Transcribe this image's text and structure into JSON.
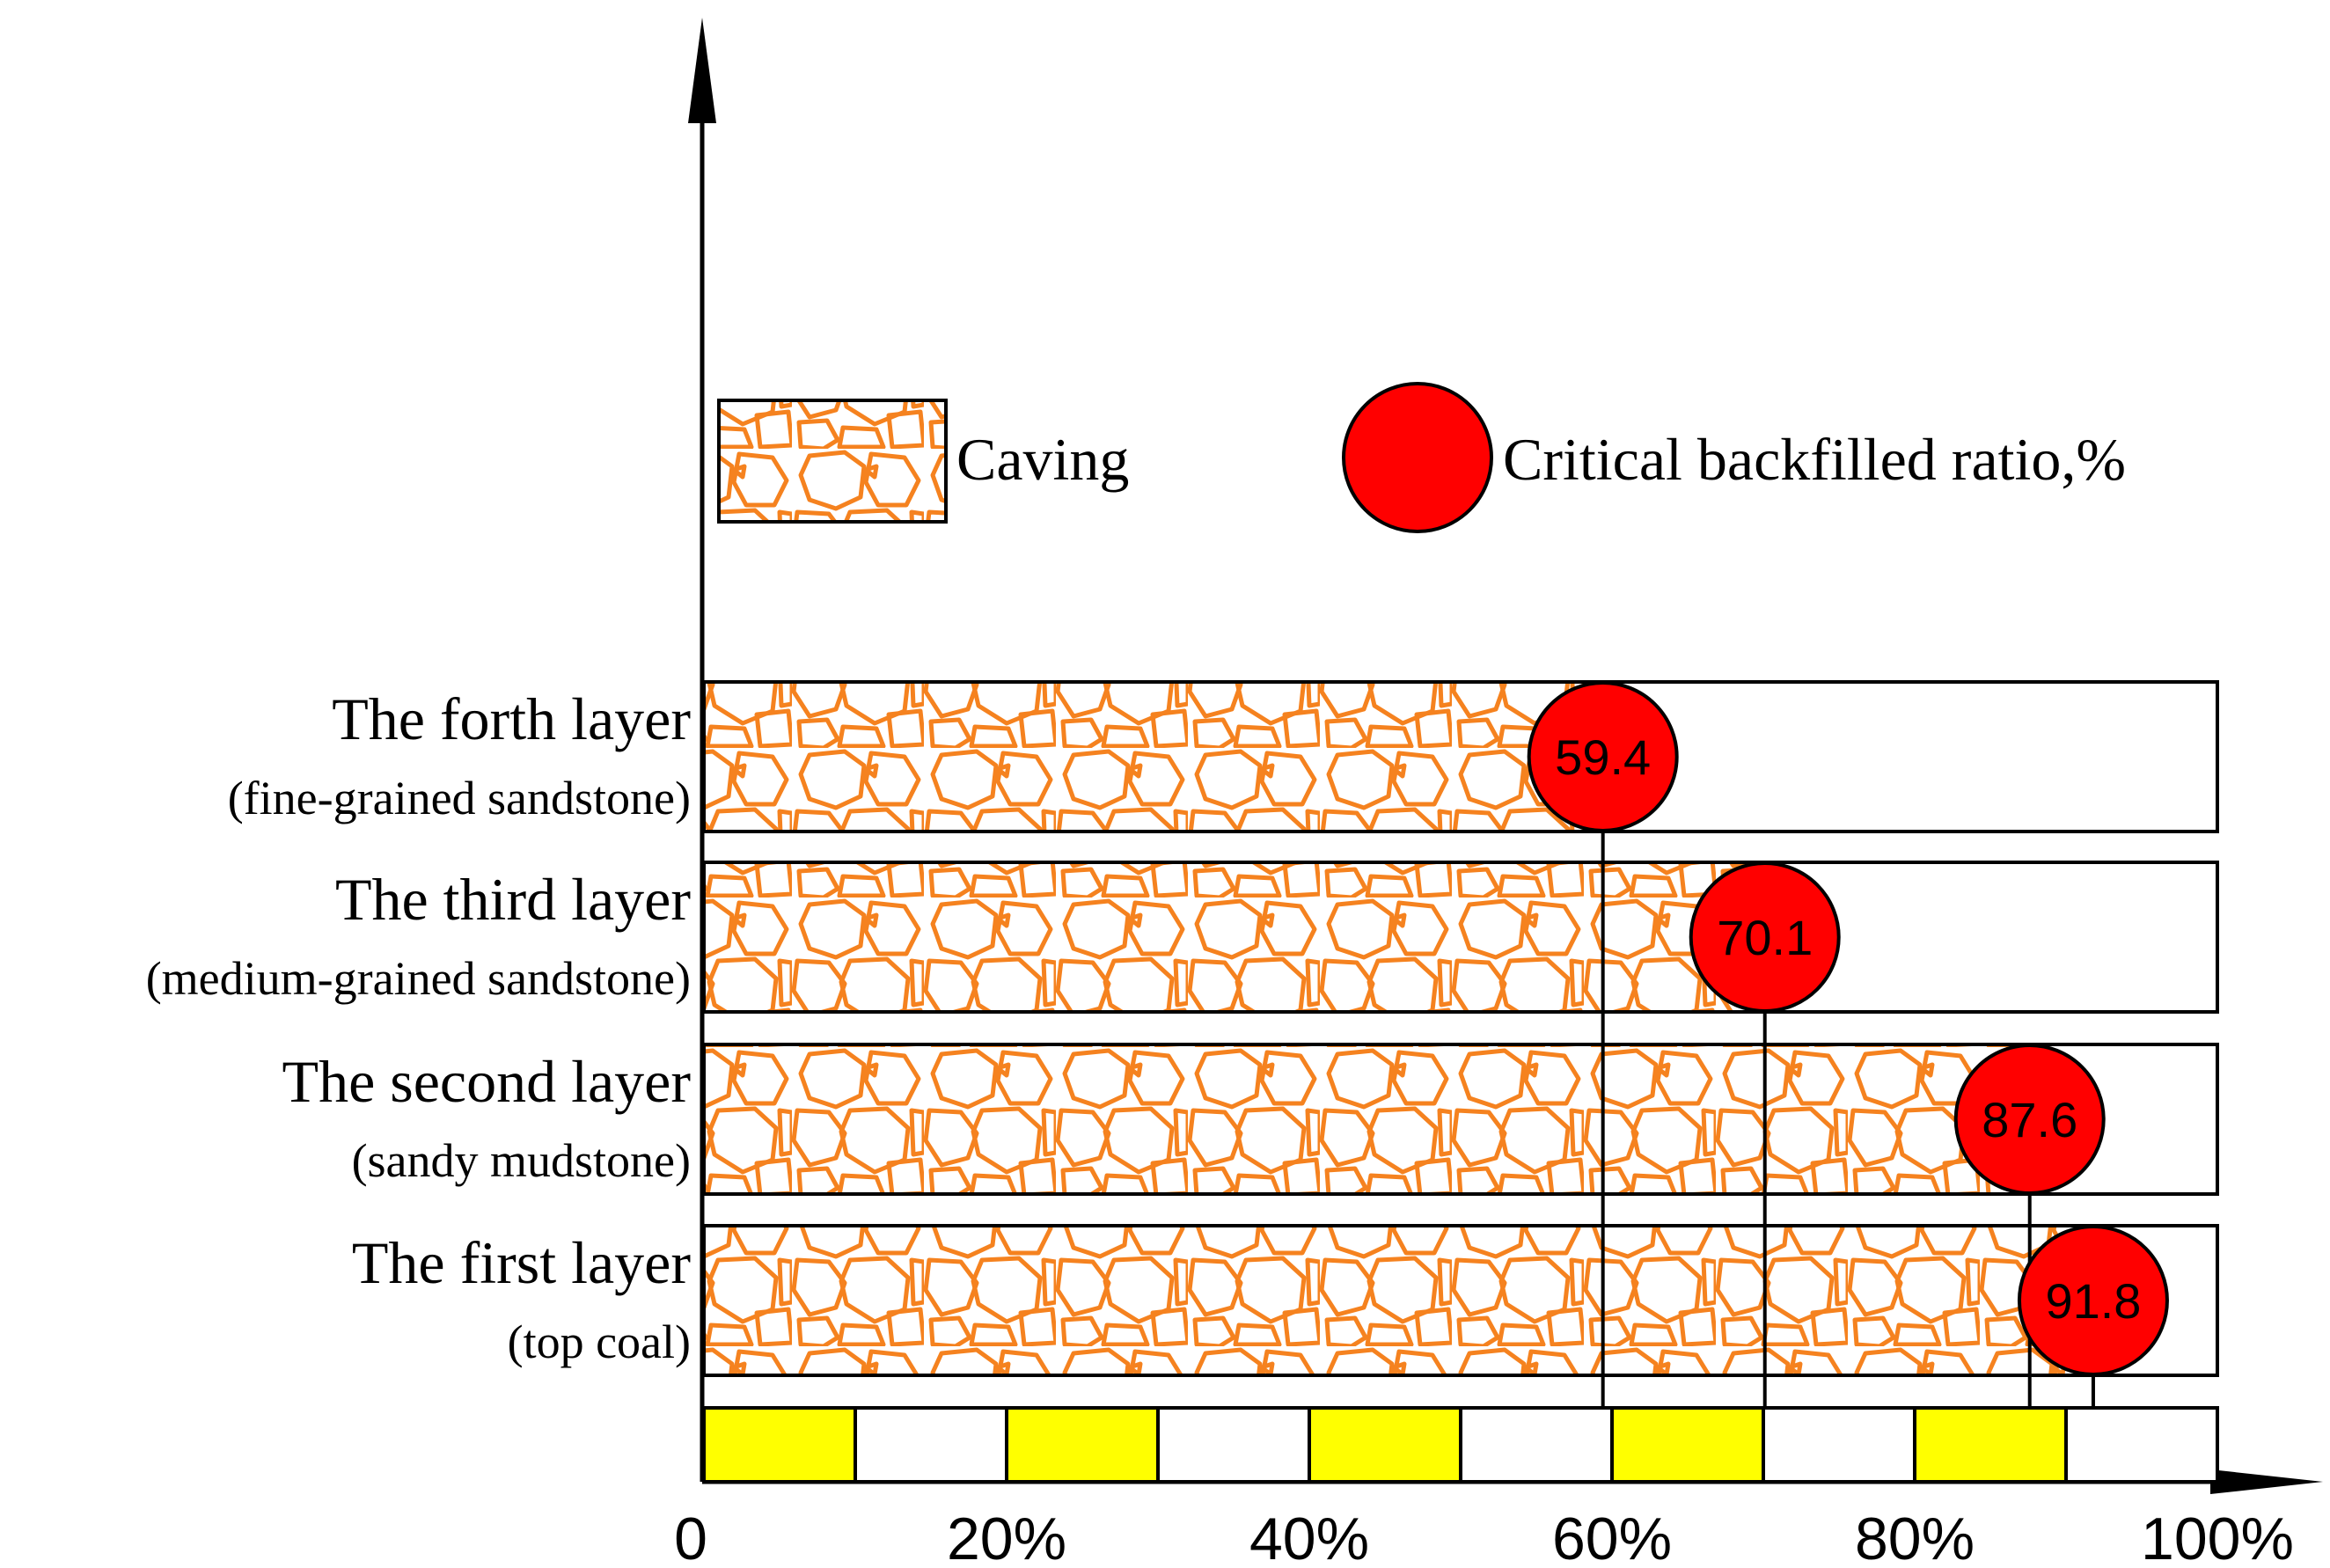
{
  "chart_data": {
    "type": "bar",
    "orientation": "horizontal",
    "title": "",
    "xlabel": "",
    "ylabel": "",
    "xlim": [
      0,
      100
    ],
    "x_ticks": [
      "0",
      "20%",
      "40%",
      "60%",
      "80%",
      "100%"
    ],
    "categories": [
      {
        "name": "The forth layer",
        "sub": "(fine-grained sandstone)"
      },
      {
        "name": "The third layer",
        "sub": "(medium-grained sandstone)"
      },
      {
        "name": "The second layer",
        "sub": "(sandy mudstone)"
      },
      {
        "name": "The first layer",
        "sub": "(top coal)"
      }
    ],
    "series": [
      {
        "name": "Critical backfilled ratio,%",
        "values": [
          59.4,
          70.1,
          87.6,
          91.8
        ],
        "labels": [
          "59.4",
          "70.1",
          "87.6",
          "91.8"
        ]
      }
    ],
    "legend": {
      "caving_label": "Caving",
      "ratio_label": "Critical backfilled ratio,%",
      "placement": "top"
    },
    "scale_bar": {
      "segments": 10,
      "filled": [
        0,
        2,
        4,
        6,
        8
      ]
    },
    "colors": {
      "caving_stroke": "#f5821f",
      "marker_fill": "#ff0000",
      "scale_fill": "#ffff00",
      "axis": "#000000"
    }
  }
}
